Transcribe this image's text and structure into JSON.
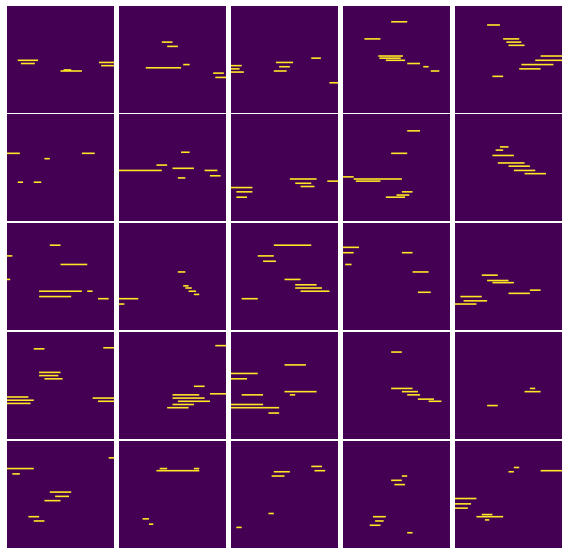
{
  "chart_data": {
    "type": "heatmap",
    "layout": {
      "rows": 5,
      "cols": 5
    },
    "grid": false,
    "axes_visible": false,
    "colormap": "viridis",
    "colors": {
      "background": "#440154",
      "highlight": "#fde725",
      "separator": "#ffffff"
    },
    "panels": [
      [
        [
          [
            0.1,
            0.29,
            0.5
          ],
          [
            0.13,
            0.26,
            0.53
          ],
          [
            0.53,
            0.6,
            0.59
          ],
          [
            0.5,
            0.7,
            0.6
          ],
          [
            0.86,
            1.0,
            0.52
          ],
          [
            0.88,
            1.0,
            0.55
          ]
        ],
        [
          [
            0.4,
            0.5,
            0.33
          ],
          [
            0.45,
            0.55,
            0.37
          ],
          [
            0.25,
            0.58,
            0.57
          ],
          [
            0.6,
            0.66,
            0.54
          ],
          [
            0.88,
            0.98,
            0.62
          ],
          [
            0.9,
            1.0,
            0.66
          ]
        ],
        [
          [
            0.0,
            0.1,
            0.55
          ],
          [
            0.0,
            0.08,
            0.58
          ],
          [
            0.0,
            0.12,
            0.61
          ],
          [
            0.42,
            0.58,
            0.52
          ],
          [
            0.45,
            0.55,
            0.56
          ],
          [
            0.4,
            0.52,
            0.6
          ],
          [
            0.75,
            0.84,
            0.48
          ],
          [
            0.92,
            1.0,
            0.71
          ]
        ],
        [
          [
            0.45,
            0.6,
            0.14
          ],
          [
            0.33,
            0.56,
            0.46
          ],
          [
            0.34,
            0.54,
            0.48
          ],
          [
            0.4,
            0.58,
            0.5
          ],
          [
            0.6,
            0.72,
            0.53
          ],
          [
            0.75,
            0.8,
            0.56
          ],
          [
            0.82,
            0.9,
            0.6
          ],
          [
            0.2,
            0.35,
            0.3
          ]
        ],
        [
          [
            0.3,
            0.42,
            0.17
          ],
          [
            0.45,
            0.6,
            0.3
          ],
          [
            0.48,
            0.62,
            0.33
          ],
          [
            0.5,
            0.65,
            0.36
          ],
          [
            0.8,
            1.0,
            0.46
          ],
          [
            0.75,
            1.0,
            0.5
          ],
          [
            0.62,
            0.92,
            0.54
          ],
          [
            0.6,
            0.8,
            0.58
          ],
          [
            0.35,
            0.45,
            0.65
          ]
        ]
      ],
      [
        [
          [
            0.0,
            0.12,
            0.36
          ],
          [
            0.35,
            0.4,
            0.41
          ],
          [
            0.7,
            0.82,
            0.36
          ],
          [
            0.25,
            0.32,
            0.63
          ],
          [
            0.1,
            0.15,
            0.63
          ]
        ],
        [
          [
            0.0,
            0.4,
            0.52
          ],
          [
            0.35,
            0.45,
            0.47
          ],
          [
            0.55,
            0.62,
            0.59
          ],
          [
            0.8,
            0.92,
            0.52
          ],
          [
            0.85,
            0.95,
            0.57
          ],
          [
            0.58,
            0.66,
            0.35
          ],
          [
            0.5,
            0.7,
            0.5
          ]
        ],
        [
          [
            0.0,
            0.2,
            0.68
          ],
          [
            0.05,
            0.2,
            0.72
          ],
          [
            0.55,
            0.8,
            0.6
          ],
          [
            0.6,
            0.75,
            0.64
          ],
          [
            0.65,
            0.78,
            0.67
          ],
          [
            0.05,
            0.15,
            0.77
          ],
          [
            0.9,
            1.0,
            0.62
          ]
        ],
        [
          [
            0.1,
            0.55,
            0.6
          ],
          [
            0.12,
            0.35,
            0.62
          ],
          [
            0.55,
            0.65,
            0.72
          ],
          [
            0.5,
            0.62,
            0.75
          ],
          [
            0.4,
            0.58,
            0.77
          ],
          [
            0.6,
            0.72,
            0.15
          ],
          [
            0.45,
            0.6,
            0.36
          ],
          [
            0.0,
            0.1,
            0.58
          ]
        ],
        [
          [
            0.35,
            0.55,
            0.38
          ],
          [
            0.4,
            0.65,
            0.45
          ],
          [
            0.5,
            0.7,
            0.48
          ],
          [
            0.55,
            0.75,
            0.52
          ],
          [
            0.65,
            0.85,
            0.55
          ],
          [
            0.38,
            0.45,
            0.33
          ],
          [
            0.42,
            0.5,
            0.3
          ]
        ]
      ],
      [
        [
          [
            0.0,
            0.05,
            0.3
          ],
          [
            0.4,
            0.5,
            0.2
          ],
          [
            0.5,
            0.75,
            0.38
          ],
          [
            0.3,
            0.7,
            0.63
          ],
          [
            0.3,
            0.6,
            0.68
          ],
          [
            0.75,
            0.8,
            0.63
          ],
          [
            0.85,
            0.95,
            0.7
          ],
          [
            0.0,
            0.03,
            0.52
          ]
        ],
        [
          [
            0.0,
            0.18,
            0.7
          ],
          [
            0.6,
            0.65,
            0.58
          ],
          [
            0.62,
            0.68,
            0.6
          ],
          [
            0.65,
            0.72,
            0.63
          ],
          [
            0.7,
            0.75,
            0.66
          ],
          [
            0.55,
            0.62,
            0.45
          ],
          [
            0.0,
            0.05,
            0.75
          ]
        ],
        [
          [
            0.4,
            0.75,
            0.2
          ],
          [
            0.25,
            0.4,
            0.3
          ],
          [
            0.3,
            0.42,
            0.35
          ],
          [
            0.5,
            0.65,
            0.52
          ],
          [
            0.6,
            0.8,
            0.57
          ],
          [
            0.6,
            0.85,
            0.6
          ],
          [
            0.65,
            0.92,
            0.63
          ],
          [
            0.1,
            0.25,
            0.7
          ]
        ],
        [
          [
            0.0,
            0.15,
            0.22
          ],
          [
            0.0,
            0.1,
            0.27
          ],
          [
            0.55,
            0.65,
            0.27
          ],
          [
            0.65,
            0.8,
            0.45
          ],
          [
            0.7,
            0.82,
            0.64
          ],
          [
            0.02,
            0.08,
            0.38
          ]
        ],
        [
          [
            0.25,
            0.4,
            0.48
          ],
          [
            0.3,
            0.5,
            0.53
          ],
          [
            0.35,
            0.55,
            0.55
          ],
          [
            0.05,
            0.25,
            0.68
          ],
          [
            0.08,
            0.3,
            0.72
          ],
          [
            0.0,
            0.2,
            0.75
          ],
          [
            0.5,
            0.7,
            0.65
          ],
          [
            0.7,
            0.8,
            0.62
          ]
        ]
      ],
      [
        [
          [
            0.25,
            0.35,
            0.15
          ],
          [
            0.3,
            0.5,
            0.37
          ],
          [
            0.3,
            0.48,
            0.4
          ],
          [
            0.35,
            0.52,
            0.43
          ],
          [
            0.0,
            0.2,
            0.6
          ],
          [
            0.0,
            0.25,
            0.63
          ],
          [
            0.0,
            0.22,
            0.66
          ],
          [
            0.8,
            1.0,
            0.61
          ],
          [
            0.85,
            1.0,
            0.64
          ],
          [
            0.9,
            1.0,
            0.14
          ]
        ],
        [
          [
            0.5,
            0.75,
            0.58
          ],
          [
            0.5,
            0.8,
            0.61
          ],
          [
            0.55,
            0.85,
            0.64
          ],
          [
            0.5,
            0.7,
            0.67
          ],
          [
            0.45,
            0.65,
            0.7
          ],
          [
            0.7,
            0.8,
            0.5
          ],
          [
            0.85,
            1.0,
            0.57
          ],
          [
            0.9,
            1.0,
            0.12
          ]
        ],
        [
          [
            0.0,
            0.25,
            0.38
          ],
          [
            0.0,
            0.15,
            0.43
          ],
          [
            0.0,
            0.3,
            0.67
          ],
          [
            0.0,
            0.45,
            0.7
          ],
          [
            0.5,
            0.7,
            0.3
          ],
          [
            0.5,
            0.8,
            0.55
          ],
          [
            0.55,
            0.6,
            0.58
          ],
          [
            0.1,
            0.3,
            0.58
          ],
          [
            0.35,
            0.45,
            0.75
          ]
        ],
        [
          [
            0.45,
            0.65,
            0.52
          ],
          [
            0.55,
            0.7,
            0.55
          ],
          [
            0.6,
            0.72,
            0.58
          ],
          [
            0.7,
            0.85,
            0.62
          ],
          [
            0.8,
            0.92,
            0.64
          ],
          [
            0.45,
            0.55,
            0.18
          ]
        ],
        [
          [
            0.3,
            0.4,
            0.68
          ],
          [
            0.65,
            0.8,
            0.55
          ],
          [
            0.7,
            0.75,
            0.52
          ]
        ]
      ],
      [
        [
          [
            0.0,
            0.25,
            0.25
          ],
          [
            0.05,
            0.12,
            0.3
          ],
          [
            0.4,
            0.6,
            0.47
          ],
          [
            0.45,
            0.58,
            0.51
          ],
          [
            0.35,
            0.5,
            0.55
          ],
          [
            0.2,
            0.3,
            0.7
          ],
          [
            0.25,
            0.35,
            0.74
          ],
          [
            0.95,
            1.0,
            0.15
          ]
        ],
        [
          [
            0.35,
            0.75,
            0.27
          ],
          [
            0.38,
            0.45,
            0.25
          ],
          [
            0.7,
            0.75,
            0.25
          ],
          [
            0.22,
            0.28,
            0.72
          ],
          [
            0.28,
            0.32,
            0.77
          ]
        ],
        [
          [
            0.4,
            0.55,
            0.28
          ],
          [
            0.38,
            0.5,
            0.32
          ],
          [
            0.75,
            0.85,
            0.23
          ],
          [
            0.78,
            0.88,
            0.27
          ],
          [
            0.35,
            0.4,
            0.67
          ],
          [
            0.05,
            0.1,
            0.8
          ]
        ],
        [
          [
            0.55,
            0.6,
            0.32
          ],
          [
            0.45,
            0.55,
            0.36
          ],
          [
            0.48,
            0.58,
            0.4
          ],
          [
            0.28,
            0.4,
            0.7
          ],
          [
            0.3,
            0.38,
            0.74
          ],
          [
            0.25,
            0.35,
            0.78
          ],
          [
            0.6,
            0.65,
            0.85
          ]
        ],
        [
          [
            0.0,
            0.2,
            0.53
          ],
          [
            0.0,
            0.15,
            0.58
          ],
          [
            0.0,
            0.12,
            0.62
          ],
          [
            0.25,
            0.35,
            0.68
          ],
          [
            0.2,
            0.45,
            0.7
          ],
          [
            0.28,
            0.32,
            0.73
          ],
          [
            0.8,
            1.0,
            0.27
          ],
          [
            0.5,
            0.55,
            0.28
          ],
          [
            0.55,
            0.6,
            0.24
          ]
        ]
      ]
    ]
  }
}
